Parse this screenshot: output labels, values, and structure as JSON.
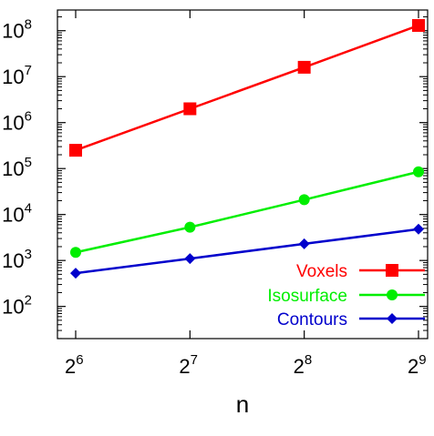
{
  "chart_data": {
    "type": "line",
    "xlabel": "n",
    "ylabel": "",
    "x_scale": "log2",
    "y_scale": "log10",
    "xlim": [
      6,
      9
    ],
    "ylim_exponents": [
      1.3,
      8.45
    ],
    "x_ticks": [
      {
        "base": "2",
        "exp": "6",
        "value": 64
      },
      {
        "base": "2",
        "exp": "7",
        "value": 128
      },
      {
        "base": "2",
        "exp": "8",
        "value": 256
      },
      {
        "base": "2",
        "exp": "9",
        "value": 512
      }
    ],
    "y_ticks": [
      {
        "base": "10",
        "exp": "2",
        "value": 100
      },
      {
        "base": "10",
        "exp": "3",
        "value": 1000
      },
      {
        "base": "10",
        "exp": "4",
        "value": 10000
      },
      {
        "base": "10",
        "exp": "5",
        "value": 100000
      },
      {
        "base": "10",
        "exp": "6",
        "value": 1000000
      },
      {
        "base": "10",
        "exp": "7",
        "value": 10000000
      },
      {
        "base": "10",
        "exp": "8",
        "value": 100000000
      }
    ],
    "x": [
      64,
      128,
      256,
      512
    ],
    "series": [
      {
        "name": "Voxels",
        "color": "#ff0000",
        "marker": "square",
        "values": [
          250000,
          2000000,
          16000000,
          130000000
        ]
      },
      {
        "name": "Isosurface",
        "color": "#00ee00",
        "marker": "circle",
        "values": [
          1500,
          5300,
          21000,
          85000
        ]
      },
      {
        "name": "Contours",
        "color": "#0000cc",
        "marker": "diamond",
        "values": [
          530,
          1100,
          2300,
          4800
        ]
      }
    ],
    "legend_position": "bottom-right",
    "grid": false
  }
}
